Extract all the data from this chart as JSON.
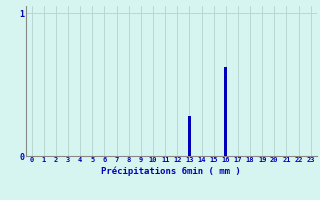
{
  "hours": [
    0,
    1,
    2,
    3,
    4,
    5,
    6,
    7,
    8,
    9,
    10,
    11,
    12,
    13,
    14,
    15,
    16,
    17,
    18,
    19,
    20,
    21,
    22,
    23
  ],
  "values": [
    0,
    0,
    0,
    0,
    0,
    0,
    0,
    0,
    0,
    0,
    0,
    0,
    0,
    0.28,
    0,
    0,
    0.62,
    0,
    0,
    0,
    0,
    0,
    0,
    0
  ],
  "xlim": [
    -0.5,
    23.5
  ],
  "ylim": [
    0,
    1.05
  ],
  "yticks": [
    0,
    1
  ],
  "xtick_labels": [
    "0",
    "1",
    "2",
    "3",
    "4",
    "5",
    "6",
    "7",
    "8",
    "9",
    "10",
    "11",
    "12",
    "13",
    "14",
    "15",
    "16",
    "17",
    "18",
    "19",
    "20",
    "21",
    "22",
    "23"
  ],
  "xlabel": "Précipitations 6min ( mm )",
  "bar_color": "#0000bb",
  "background_color": "#d6f5f0",
  "grid_color": "#b8d8d2",
  "axis_color": "#888888",
  "text_color": "#0000bb",
  "tick_color": "#0000bb",
  "bar_width": 0.25
}
